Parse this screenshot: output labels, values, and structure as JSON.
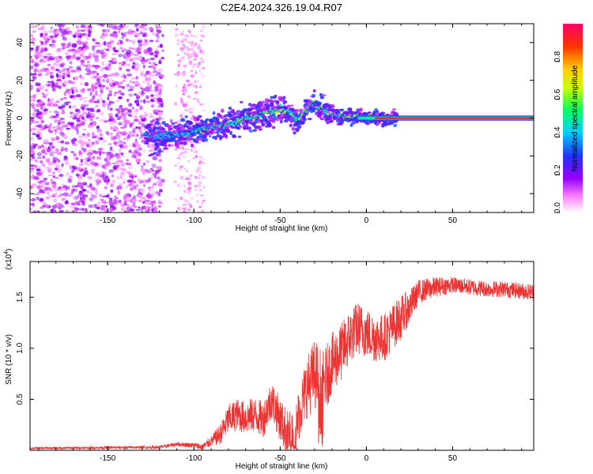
{
  "title": "C2E4.2024.326.19.04.R07",
  "colors": {
    "frame": "#000000",
    "snr_line": "#ee3333",
    "colorbar": [
      "#ffffff",
      "#ff66ff",
      "#8800ff",
      "#2222ff",
      "#00ccff",
      "#00ff66",
      "#ccff00",
      "#ffcc00",
      "#ff3300",
      "#ff0066"
    ]
  },
  "chart_data": [
    {
      "type": "heatmap",
      "name": "spectrogram",
      "xlabel": "Height of straight line (km)",
      "ylabel": "Frequency (Hz)",
      "xlim": [
        -195,
        97
      ],
      "ylim": [
        -50,
        50
      ],
      "xticks": [
        -150,
        -100,
        -50,
        0,
        50
      ],
      "yticks": [
        -40,
        -20,
        0,
        20,
        40
      ],
      "ridge": {
        "x": [
          -125,
          -120,
          -110,
          -100,
          -90,
          -80,
          -70,
          -60,
          -50,
          -45,
          -40,
          -35,
          -30,
          -25,
          -20,
          -10,
          0,
          10,
          20,
          50,
          97
        ],
        "y": [
          -9,
          -10,
          -9,
          -7,
          -5,
          -3,
          0,
          2,
          5,
          3,
          -1,
          4,
          8,
          5,
          2,
          1,
          0.5,
          0,
          0,
          0,
          0
        ]
      },
      "colorbar": {
        "label": "Normalized spectral amplitude",
        "range": [
          0,
          1
        ],
        "ticks": [
          "0.0",
          "0.2",
          "0.4",
          "0.6",
          "0.8"
        ],
        "tick_values": [
          0.0,
          0.2,
          0.4,
          0.6,
          0.8
        ]
      }
    },
    {
      "type": "line",
      "name": "snr",
      "xlabel": "Height of straight line (km)",
      "ylabel": "SNR (10 * v/v)",
      "scale_label": "(x10",
      "scale_exp": "4",
      "xlim": [
        -195,
        97
      ],
      "ylim": [
        0,
        18500
      ],
      "xticks": [
        -150,
        -100,
        -50,
        0,
        50
      ],
      "yticks": [
        "0.5",
        "1.0",
        "1.5"
      ],
      "ytick_values": [
        5000,
        10000,
        15000
      ],
      "envelope_x": [
        -195,
        -120,
        -110,
        -100,
        -95,
        -85,
        -80,
        -75,
        -70,
        -65,
        -60,
        -55,
        -50,
        -45,
        -40,
        -35,
        -30,
        -25,
        -20,
        -15,
        -10,
        -5,
        0,
        5,
        10,
        15,
        20,
        25,
        30,
        40,
        50,
        60,
        70,
        80,
        90,
        97
      ],
      "envelope_y": [
        200,
        300,
        600,
        500,
        300,
        1500,
        3000,
        3500,
        3200,
        3500,
        3000,
        5000,
        3000,
        1500,
        3000,
        6000,
        7500,
        6500,
        8500,
        9500,
        11000,
        12000,
        11500,
        11000,
        11000,
        12000,
        13000,
        14000,
        15500,
        16000,
        16200,
        16000,
        15800,
        15800,
        15600,
        15500
      ],
      "noise_x": [
        -195,
        -120,
        -100,
        -90,
        -80,
        -60,
        -40,
        -30,
        -20,
        0,
        20,
        30,
        50,
        97
      ],
      "noise_y": [
        100,
        150,
        250,
        500,
        1500,
        1800,
        2500,
        3500,
        3000,
        2500,
        2200,
        1200,
        800,
        800
      ]
    }
  ]
}
